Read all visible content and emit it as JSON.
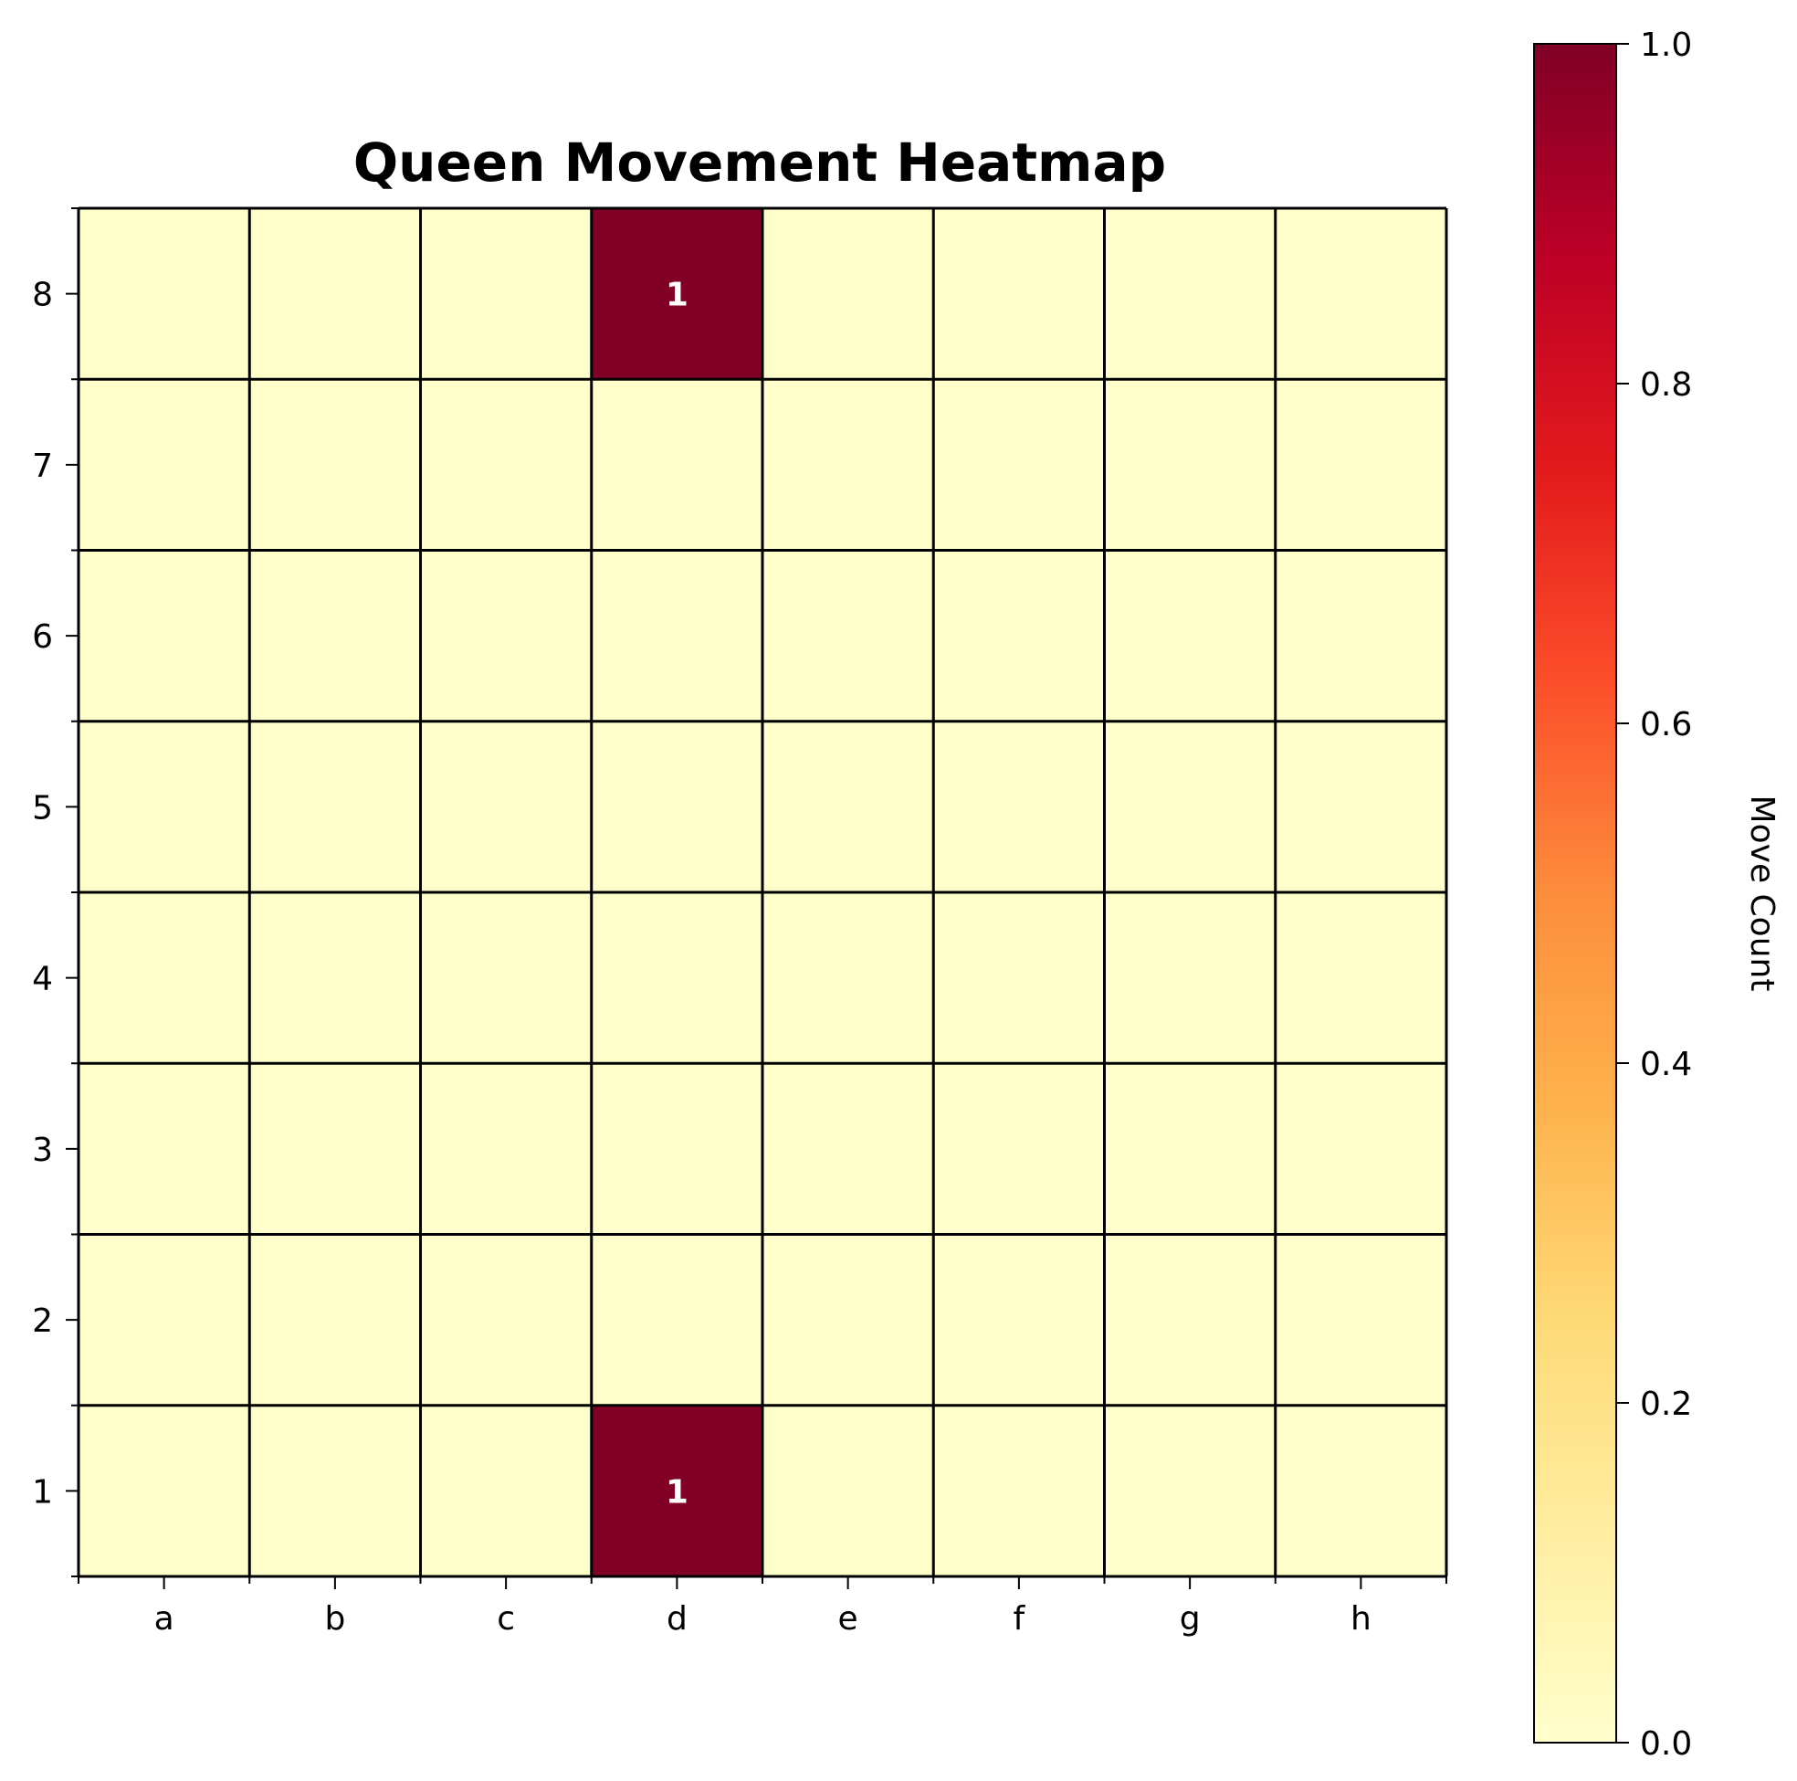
{
  "chart_data": {
    "type": "heatmap",
    "title": "Queen Movement Heatmap",
    "files": [
      "a",
      "b",
      "c",
      "d",
      "e",
      "f",
      "g",
      "h"
    ],
    "ranks": [
      "8",
      "7",
      "6",
      "5",
      "4",
      "3",
      "2",
      "1"
    ],
    "values": [
      [
        0,
        0,
        0,
        1,
        0,
        0,
        0,
        0
      ],
      [
        0,
        0,
        0,
        0,
        0,
        0,
        0,
        0
      ],
      [
        0,
        0,
        0,
        0,
        0,
        0,
        0,
        0
      ],
      [
        0,
        0,
        0,
        0,
        0,
        0,
        0,
        0
      ],
      [
        0,
        0,
        0,
        0,
        0,
        0,
        0,
        0
      ],
      [
        0,
        0,
        0,
        0,
        0,
        0,
        0,
        0
      ],
      [
        0,
        0,
        0,
        0,
        0,
        0,
        0,
        0
      ],
      [
        0,
        0,
        0,
        1,
        0,
        0,
        0,
        0
      ]
    ],
    "colorbar": {
      "label": "Move Count",
      "range": [
        0.0,
        1.0
      ],
      "ticks": [
        "0.0",
        "0.2",
        "0.4",
        "0.6",
        "0.8",
        "1.0"
      ],
      "colormap": "YlOrRd",
      "colormap_stops": [
        "#ffffcc",
        "#ffeda0",
        "#fed976",
        "#feb24c",
        "#fd8d3c",
        "#fc4e2a",
        "#e31a1c",
        "#bd0026",
        "#800026"
      ]
    },
    "annotation_color": "#ffffff",
    "grid_color": "#000000",
    "annotate_nonzero_only": true
  }
}
